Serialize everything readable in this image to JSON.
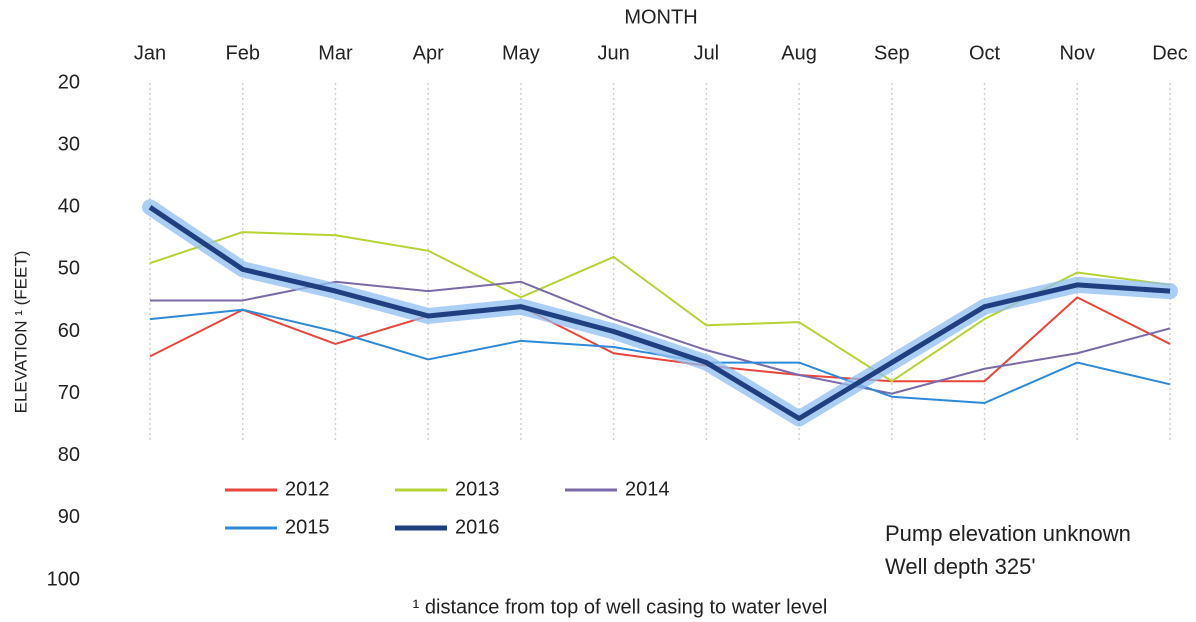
{
  "chart_data": {
    "type": "line",
    "x_label": "MONTH",
    "y_label": "ELEVATION ¹ (FEET)",
    "footnote": "¹ distance from top of well casing to water level",
    "annotations": [
      "Pump elevation unknown",
      "Well depth 325'"
    ],
    "categories": [
      "Jan",
      "Feb",
      "Mar",
      "Apr",
      "May",
      "Jun",
      "Jul",
      "Aug",
      "Sep",
      "Oct",
      "Nov",
      "Dec"
    ],
    "ylim": [
      20,
      100
    ],
    "y_inverted": true,
    "yticks": [
      20,
      30,
      40,
      50,
      60,
      70,
      80,
      90,
      100
    ],
    "x_grid": true,
    "series": [
      {
        "name": "2012",
        "color": "#e8453c",
        "values": [
          64,
          56.5,
          62,
          57.5,
          56,
          63.5,
          65.5,
          67,
          68,
          68,
          54.5,
          62
        ]
      },
      {
        "name": "2013",
        "color": "#b5d334",
        "values": [
          49,
          44,
          44.5,
          47,
          54.5,
          48,
          59,
          58.5,
          68,
          58,
          50.5,
          52.5
        ]
      },
      {
        "name": "2014",
        "color": "#7b6aa8",
        "values": [
          55,
          55,
          52,
          53.5,
          52,
          58,
          63,
          67,
          70,
          66,
          63.5,
          59.5
        ]
      },
      {
        "name": "2015",
        "color": "#2e8ad8",
        "values": [
          58,
          56.5,
          60,
          64.5,
          61.5,
          62.5,
          65,
          65,
          70.5,
          71.5,
          65,
          68.5
        ]
      },
      {
        "name": "2016",
        "color": "#1f3f80",
        "values": [
          40,
          50,
          53.5,
          57.5,
          56,
          60,
          65,
          74,
          65,
          56,
          52.5,
          53.5
        ]
      }
    ]
  }
}
